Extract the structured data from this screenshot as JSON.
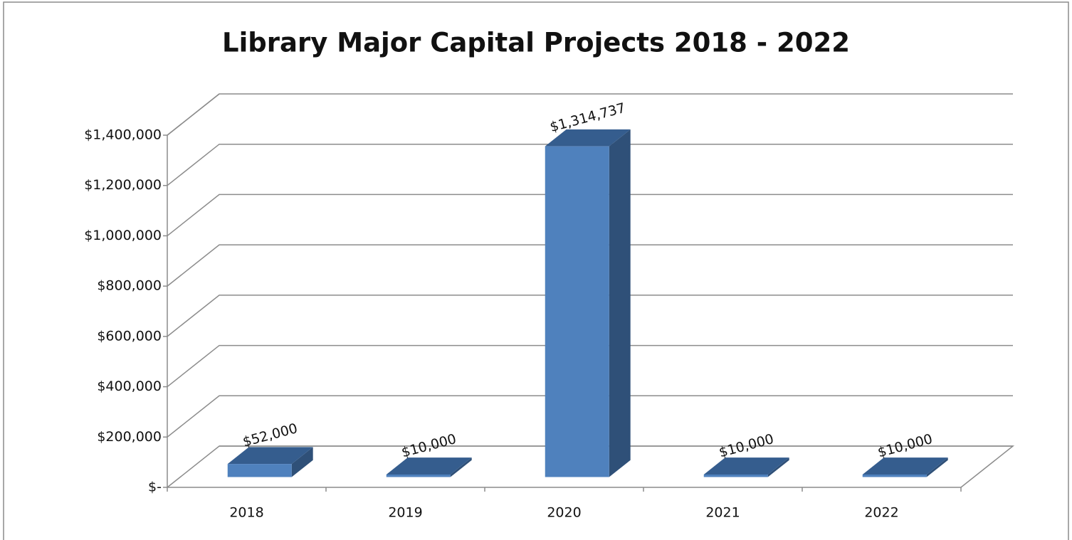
{
  "chart_data": {
    "type": "bar3d",
    "title": "Library Major Capital Projects 2018 - 2022",
    "categories": [
      "2018",
      "2019",
      "2020",
      "2021",
      "2022"
    ],
    "values": [
      52000,
      10000,
      1314737,
      10000,
      10000
    ],
    "value_labels": [
      "$52,000",
      "$10,000",
      "$1,314,737",
      "$10,000",
      "$10,000"
    ],
    "color": "#4f81bd",
    "ylim": [
      0,
      1400000
    ],
    "yticks": [
      {
        "value": 0,
        "label": "$-"
      },
      {
        "value": 200000,
        "label": "$200,000"
      },
      {
        "value": 400000,
        "label": "$400,000"
      },
      {
        "value": 600000,
        "label": "$600,000"
      },
      {
        "value": 800000,
        "label": "$800,000"
      },
      {
        "value": 1000000,
        "label": "$1,000,000"
      },
      {
        "value": 1200000,
        "label": "$1,200,000"
      },
      {
        "value": 1400000,
        "label": "$1,400,000"
      }
    ],
    "grid": true
  }
}
